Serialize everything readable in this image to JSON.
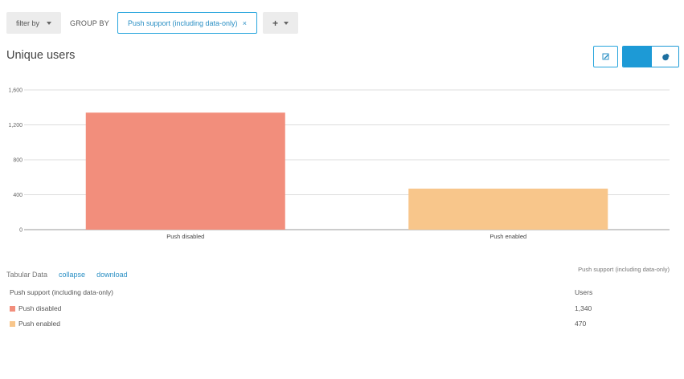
{
  "toolbar": {
    "filter_label": "filter by",
    "groupby_label": "GROUP BY",
    "chip_label": "Push support (including data-only)",
    "chip_close": "×",
    "add_label": "+"
  },
  "title": "Unique users",
  "icons": {
    "edit": "edit-icon",
    "pie": "pie-chart-icon",
    "bar": "bar-chart-icon"
  },
  "colors": {
    "accent": "#1d9ad6",
    "disabled": "#f28e7c",
    "enabled": "#f8c68b"
  },
  "chart_data": {
    "type": "bar",
    "categories": [
      "Push disabled",
      "Push enabled"
    ],
    "values": [
      1340,
      470
    ],
    "colors": [
      "#f28e7c",
      "#f8c68b"
    ],
    "yticks": [
      "0",
      "400",
      "800",
      "1,200",
      "1,600"
    ],
    "ytick_values": [
      0,
      400,
      800,
      1200,
      1600
    ],
    "ylim": [
      0,
      1600
    ],
    "grid": true,
    "legend_title": "Push support (including data-only)"
  },
  "tabular": {
    "label": "Tabular Data",
    "collapse": "collapse",
    "download": "download",
    "col_group": "Push support (including data-only)",
    "col_value": "Users",
    "rows": [
      {
        "name": "Push disabled",
        "value": "1,340"
      },
      {
        "name": "Push enabled",
        "value": "470"
      }
    ]
  }
}
